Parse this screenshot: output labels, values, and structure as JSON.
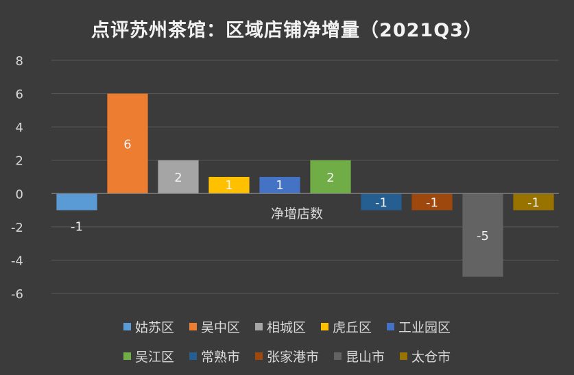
{
  "title": "点评苏州茶馆：区域店铺净增量（2021Q3）",
  "chart_data": {
    "type": "bar",
    "title": "点评苏州茶馆：区域店铺净增量（2021Q3）",
    "xlabel": "净增店数",
    "ylabel": "",
    "ylim": [
      -6,
      8
    ],
    "yticks": [
      8,
      6,
      4,
      2,
      0,
      -2,
      -4,
      -6
    ],
    "grid": true,
    "legend_position": "bottom",
    "series": [
      {
        "name": "姑苏区",
        "value": -1,
        "label": "-1",
        "color": "#5b9bd5"
      },
      {
        "name": "吴中区",
        "value": 6,
        "label": "6",
        "color": "#ed7d31"
      },
      {
        "name": "相城区",
        "value": 2,
        "label": "2",
        "color": "#a5a5a5"
      },
      {
        "name": "虎丘区",
        "value": 1,
        "label": "1",
        "color": "#ffc000"
      },
      {
        "name": "工业园区",
        "value": 1,
        "label": "1",
        "color": "#4472c4"
      },
      {
        "name": "吴江区",
        "value": 2,
        "label": "2",
        "color": "#70ad47"
      },
      {
        "name": "常熟市",
        "value": -1,
        "label": "-1",
        "color": "#255e91"
      },
      {
        "name": "张家港市",
        "value": -1,
        "label": "-1",
        "color": "#9e480e"
      },
      {
        "name": "昆山市",
        "value": -5,
        "label": "-5",
        "color": "#636363"
      },
      {
        "name": "太仓市",
        "value": -1,
        "label": "-1",
        "color": "#997300"
      }
    ]
  }
}
